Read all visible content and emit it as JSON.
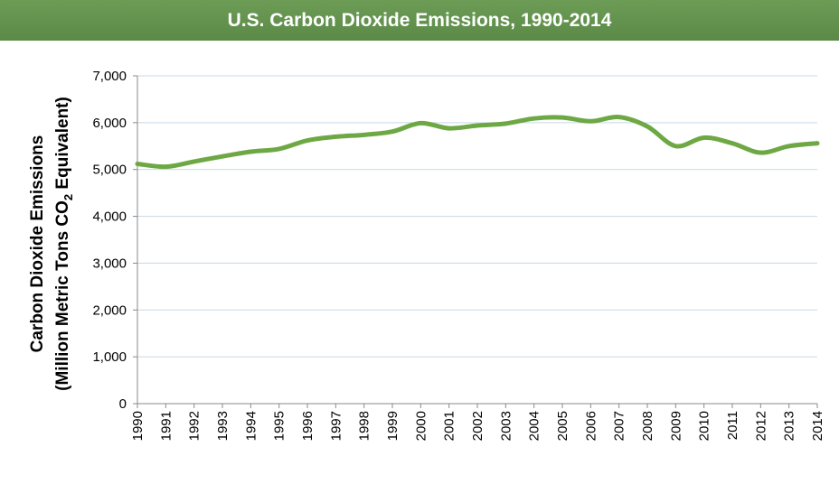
{
  "title": "U.S. Carbon Dioxide Emissions, 1990-2014",
  "colors": {
    "header": "#5a8a46",
    "line": "#6ea844",
    "grid": "#c6d9e6",
    "axis": "#8a8a8a"
  },
  "chart_data": {
    "type": "line",
    "title": "U.S. Carbon Dioxide Emissions, 1990-2014",
    "ylabel_line1": "Carbon Dioxide Emissions",
    "ylabel_line2_pre": "(Million Metric Tons CO",
    "ylabel_sub": "2",
    "ylabel_line2_post": " Equivalent)",
    "ylim": [
      0,
      7000
    ],
    "yticks": [
      0,
      1000,
      2000,
      3000,
      4000,
      5000,
      6000,
      7000
    ],
    "ytick_labels": [
      "0",
      "1,000",
      "2,000",
      "3,000",
      "4,000",
      "5,000",
      "6,000",
      "7,000"
    ],
    "grid": true,
    "x": [
      "1990",
      "1991",
      "1992",
      "1993",
      "1994",
      "1995",
      "1996",
      "1997",
      "1998",
      "1999",
      "2000",
      "2001",
      "2002",
      "2003",
      "2004",
      "2005",
      "2006",
      "2007",
      "2008",
      "2009",
      "2010",
      "2011",
      "2012",
      "2013",
      "2014"
    ],
    "series": [
      {
        "values": [
          5120,
          5060,
          5170,
          5280,
          5380,
          5440,
          5620,
          5700,
          5740,
          5810,
          5990,
          5880,
          5940,
          5980,
          6090,
          6110,
          6030,
          6120,
          5920,
          5500,
          5680,
          5560,
          5360,
          5500,
          5560
        ]
      }
    ]
  }
}
